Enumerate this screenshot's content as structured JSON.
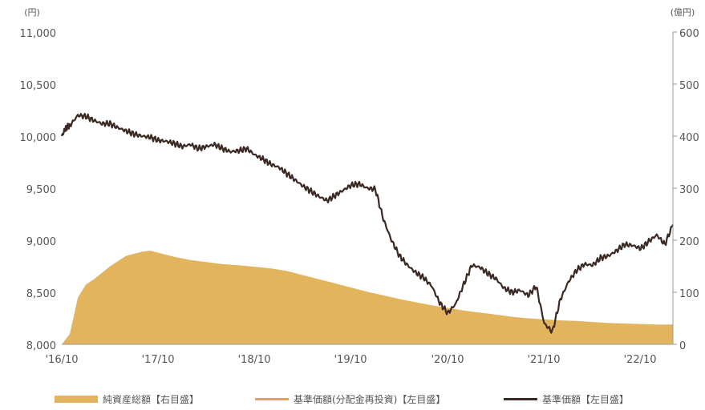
{
  "chart_data": {
    "type": "line",
    "left_unit": "(円)",
    "right_unit": "(億円)",
    "x_ticks": [
      "'16/10",
      "'17/10",
      "'18/10",
      "'19/10",
      "'20/10",
      "'21/10",
      "'22/10"
    ],
    "y_left_ticks": [
      "8,000",
      "8,500",
      "9,000",
      "9,500",
      "10,000",
      "10,500",
      "11,000"
    ],
    "y_right_ticks": [
      "0",
      "100",
      "200",
      "300",
      "400",
      "500",
      "600"
    ],
    "ylim_left": [
      8000,
      11000
    ],
    "ylim_right": [
      0,
      600
    ],
    "xlim": [
      0,
      76
    ],
    "legend": [
      {
        "label": "純資産総額【右目盛】",
        "kind": "area",
        "color": "#e2b45e"
      },
      {
        "label": "基準価額(分配金再投資)【左目盛】",
        "kind": "line",
        "color": "#e1a25b"
      },
      {
        "label": "基準価額【左目盛】",
        "kind": "line",
        "color": "#3b2a24"
      }
    ],
    "series": [
      {
        "name": "純資産総額【右目盛】",
        "axis": "right",
        "x": [
          0,
          1,
          2,
          3,
          4,
          6,
          8,
          10,
          11,
          12,
          14,
          16,
          18,
          20,
          22,
          24,
          26,
          28,
          30,
          32,
          34,
          36,
          38,
          40,
          42,
          44,
          46,
          48,
          50,
          52,
          54,
          56,
          58,
          60,
          62,
          64,
          66,
          68,
          70,
          72,
          74,
          76
        ],
        "values": [
          0,
          20,
          90,
          115,
          125,
          150,
          170,
          178,
          180,
          176,
          168,
          162,
          158,
          154,
          152,
          149,
          146,
          141,
          133,
          125,
          117,
          109,
          101,
          94,
          87,
          81,
          75,
          70,
          65,
          61,
          57,
          53,
          50,
          48,
          46,
          45,
          43,
          41,
          40,
          39,
          38,
          38
        ]
      },
      {
        "name": "基準価額【左目盛】",
        "axis": "left",
        "x": [
          0,
          0.5,
          1,
          2,
          3,
          4,
          5,
          6,
          7,
          8,
          9,
          10,
          11,
          12,
          13,
          14,
          15,
          16,
          17,
          18,
          19,
          20,
          21,
          22,
          23,
          24,
          25,
          26,
          27,
          28,
          29,
          30,
          31,
          32,
          33,
          34,
          35,
          36,
          37,
          38,
          39,
          40,
          41,
          42,
          43,
          44,
          45,
          46,
          47,
          48,
          49,
          50,
          51,
          52,
          53,
          54,
          55,
          56,
          57,
          58,
          59,
          60,
          61,
          62,
          63,
          64,
          65,
          66,
          67,
          68,
          69,
          70,
          71,
          72,
          73,
          74,
          75,
          76
        ],
        "values": [
          10000,
          10080,
          10100,
          10200,
          10190,
          10150,
          10120,
          10120,
          10080,
          10050,
          10020,
          10000,
          9990,
          9960,
          9950,
          9930,
          9900,
          9920,
          9880,
          9900,
          9920,
          9880,
          9850,
          9860,
          9880,
          9820,
          9780,
          9730,
          9700,
          9640,
          9580,
          9520,
          9470,
          9420,
          9380,
          9430,
          9480,
          9530,
          9540,
          9500,
          9490,
          9200,
          9000,
          8850,
          8760,
          8690,
          8640,
          8560,
          8400,
          8300,
          8390,
          8580,
          8760,
          8740,
          8680,
          8630,
          8540,
          8500,
          8520,
          8470,
          8560,
          8200,
          8120,
          8430,
          8600,
          8710,
          8770,
          8760,
          8830,
          8850,
          8900,
          8960,
          8950,
          8920,
          8990,
          9050,
          8960,
          9150
        ]
      }
    ]
  }
}
